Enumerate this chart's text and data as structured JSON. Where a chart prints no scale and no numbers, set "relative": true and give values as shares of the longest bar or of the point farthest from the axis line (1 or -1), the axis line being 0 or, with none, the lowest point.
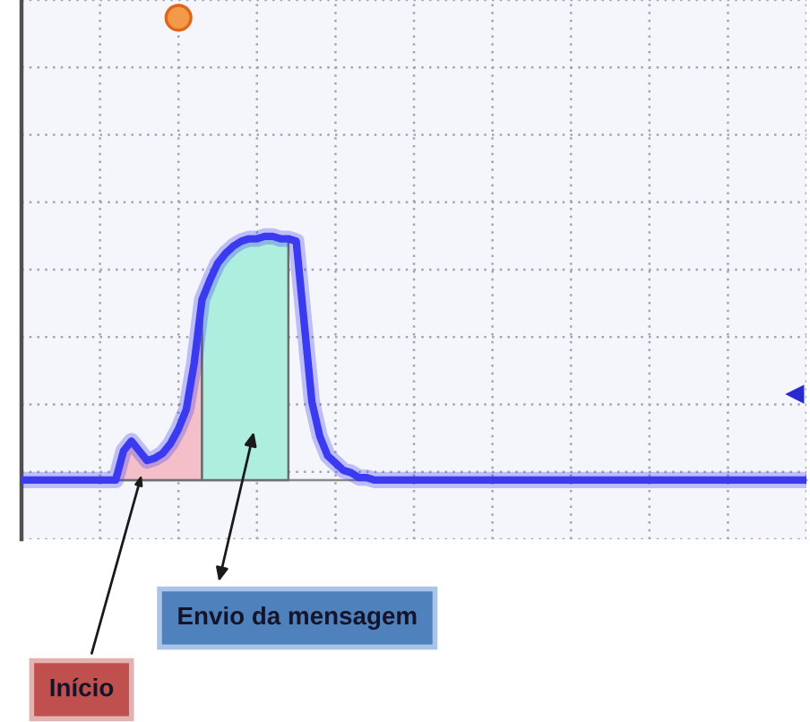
{
  "chart_data": {
    "type": "line",
    "relative": true,
    "grid": true,
    "categories": [
      null,
      null,
      null,
      null,
      null,
      null,
      null,
      null,
      null,
      null,
      null,
      null,
      null,
      null,
      null,
      null,
      null,
      null,
      null,
      null,
      null,
      null,
      null,
      null,
      null,
      null,
      null,
      null,
      null,
      null,
      null,
      null,
      null,
      null,
      null,
      null,
      null,
      null,
      null,
      null,
      null,
      null,
      null,
      null,
      null,
      null,
      null,
      null,
      null,
      null,
      null,
      null,
      null,
      null,
      null,
      null,
      null,
      null,
      null,
      null,
      null,
      null,
      null,
      null,
      null,
      null,
      null,
      null,
      null,
      null,
      null,
      null,
      null,
      null,
      null,
      null,
      null,
      null,
      null,
      null,
      null,
      null,
      null,
      null,
      null,
      null,
      null,
      null,
      null,
      null,
      null,
      null,
      null,
      null,
      null,
      null,
      null,
      null,
      null,
      null,
      null
    ],
    "series": [
      {
        "type": "area",
        "color": "#f5bfc9",
        "values": [
          null,
          null,
          null,
          null,
          null,
          null,
          null,
          null,
          null,
          null,
          null,
          null,
          0,
          0.12,
          0.16,
          0.12,
          0.08,
          0.09,
          0.11,
          0.15,
          0.21,
          0.29,
          0.48,
          0.74,
          null,
          null,
          null,
          null,
          null,
          null,
          null,
          null,
          null,
          null,
          null,
          null,
          null,
          null,
          null,
          null,
          null,
          null,
          null,
          null,
          null,
          null,
          null,
          null,
          null,
          null,
          null,
          null,
          null,
          null,
          null,
          null,
          null,
          null,
          null,
          null,
          null,
          null,
          null,
          null,
          null,
          null,
          null,
          null,
          null,
          null,
          null,
          null,
          null,
          null,
          null,
          null,
          null,
          null,
          null,
          null,
          null,
          null,
          null,
          null,
          null,
          null,
          null,
          null,
          null,
          null,
          null,
          null,
          null,
          null,
          null,
          null,
          null,
          null,
          null,
          null,
          null
        ]
      },
      {
        "type": "area",
        "color": "#aeeedf",
        "values": [
          null,
          null,
          null,
          null,
          null,
          null,
          null,
          null,
          null,
          null,
          null,
          null,
          null,
          null,
          null,
          null,
          null,
          null,
          null,
          null,
          null,
          null,
          null,
          0.74,
          0.82,
          0.89,
          0.93,
          0.96,
          0.98,
          0.99,
          0.99,
          1.0,
          1.0,
          0.99,
          0.99,
          null,
          null,
          null,
          null,
          null,
          null,
          null,
          null,
          null,
          null,
          null,
          null,
          null,
          null,
          null,
          null,
          null,
          null,
          null,
          null,
          null,
          null,
          null,
          null,
          null,
          null,
          null,
          null,
          null,
          null,
          null,
          null,
          null,
          null,
          null,
          null,
          null,
          null,
          null,
          null,
          null,
          null,
          null,
          null,
          null,
          null,
          null,
          null,
          null,
          null,
          null,
          null,
          null,
          null,
          null,
          null,
          null,
          null,
          null,
          null,
          null,
          null,
          null,
          null,
          null,
          null
        ]
      },
      {
        "color": "#3a3af0",
        "values": [
          0,
          0,
          0,
          0,
          0,
          0,
          0,
          0,
          0,
          0,
          0,
          0,
          0,
          0.12,
          0.16,
          0.12,
          0.08,
          0.09,
          0.11,
          0.15,
          0.21,
          0.29,
          0.48,
          0.74,
          0.82,
          0.89,
          0.93,
          0.96,
          0.98,
          0.99,
          0.99,
          1.0,
          1.0,
          0.99,
          0.99,
          0.98,
          0.65,
          0.32,
          0.18,
          0.1,
          0.07,
          0.04,
          0.03,
          0.01,
          0.01,
          0,
          0,
          0,
          0,
          0,
          0,
          0,
          0,
          0,
          0,
          0,
          0,
          0,
          0,
          0,
          0,
          0,
          0,
          0,
          0,
          0,
          0,
          0,
          0,
          0,
          0,
          0,
          0,
          0,
          0,
          0,
          0,
          0,
          0,
          0,
          0,
          0,
          0,
          0,
          0,
          0,
          0,
          0,
          0,
          0,
          0,
          0,
          0,
          0,
          0,
          0,
          0,
          0,
          0,
          0,
          0
        ]
      }
    ],
    "annotations": [
      "Início",
      "Envio da mensagem"
    ]
  }
}
